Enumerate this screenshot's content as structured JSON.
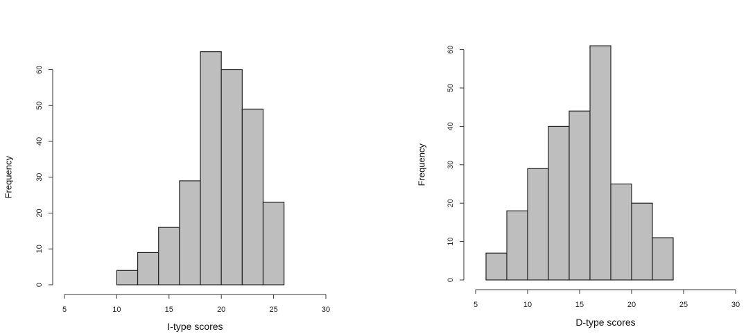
{
  "chart_data": [
    {
      "type": "bar",
      "title": "",
      "xlabel": "I-type scores",
      "ylabel": "Frequency",
      "bins": [
        [
          10,
          12
        ],
        [
          12,
          14
        ],
        [
          14,
          16
        ],
        [
          16,
          18
        ],
        [
          18,
          20
        ],
        [
          20,
          22
        ],
        [
          22,
          24
        ],
        [
          24,
          26
        ]
      ],
      "values": [
        4,
        9,
        16,
        29,
        65,
        60,
        49,
        23
      ],
      "xlim": [
        5,
        30
      ],
      "ylim": [
        0,
        65
      ],
      "xticks": [
        "5",
        "10",
        "15",
        "20",
        "25",
        "30"
      ],
      "yticks": [
        "0",
        "10",
        "20",
        "30",
        "40",
        "50",
        "60"
      ],
      "bar_color": "#bebebe",
      "grid": false
    },
    {
      "type": "bar",
      "title": "",
      "xlabel": "D-type scores",
      "ylabel": "Frequency",
      "bins": [
        [
          6,
          8
        ],
        [
          8,
          10
        ],
        [
          10,
          12
        ],
        [
          12,
          14
        ],
        [
          14,
          16
        ],
        [
          16,
          18
        ],
        [
          18,
          20
        ],
        [
          20,
          22
        ],
        [
          22,
          24
        ]
      ],
      "values": [
        7,
        18,
        29,
        40,
        44,
        61,
        25,
        20,
        11
      ],
      "xlim": [
        5,
        30
      ],
      "ylim": [
        0,
        61
      ],
      "xticks": [
        "5",
        "10",
        "15",
        "20",
        "25",
        "30"
      ],
      "yticks": [
        "0",
        "10",
        "20",
        "30",
        "40",
        "50",
        "60"
      ],
      "bar_color": "#bebebe",
      "grid": false
    }
  ]
}
